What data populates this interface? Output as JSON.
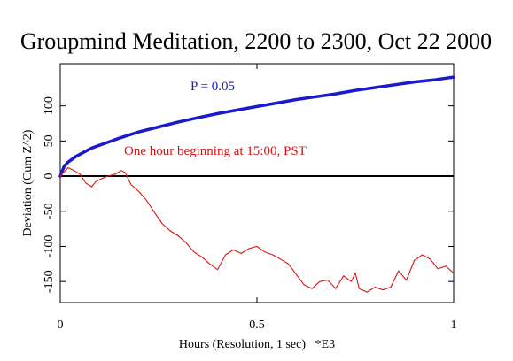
{
  "chart_data": {
    "type": "line",
    "title": "Groupmind Meditation, 2200 to 2300, Oct 22 2000",
    "xlabel": "Hours (Resolution, 1 sec)   *E3",
    "ylabel": "Deviation (Cum Z^2)",
    "xlim": [
      0,
      1
    ],
    "ylim": [
      -180,
      160
    ],
    "x_ticks": [
      0,
      0.5,
      1
    ],
    "x_tick_labels": [
      "0",
      "0.5",
      "1"
    ],
    "y_ticks": [
      -150,
      -100,
      -50,
      0,
      50,
      100
    ],
    "y_tick_labels": [
      "-150",
      "-100",
      "-50",
      "0",
      "50",
      "100"
    ],
    "grid": false,
    "colors": {
      "envelope": "#1a1acc",
      "data": "#dd1111",
      "axis": "#000000"
    },
    "annotations": [
      {
        "text": "P = 0.05",
        "color": "#1a1acc"
      },
      {
        "text": "One hour beginning at 15:00, PST",
        "color": "#dd1111"
      }
    ],
    "series": [
      {
        "role": "p05-envelope",
        "x": [
          0,
          0.01,
          0.02,
          0.04,
          0.06,
          0.08,
          0.1,
          0.15,
          0.2,
          0.25,
          0.3,
          0.35,
          0.4,
          0.45,
          0.5,
          0.55,
          0.6,
          0.65,
          0.7,
          0.75,
          0.8,
          0.85,
          0.9,
          0.95,
          1.0
        ],
        "values": [
          0,
          14,
          20,
          28,
          34,
          40,
          44,
          54,
          63,
          70,
          77,
          83,
          89,
          94,
          99,
          104,
          109,
          113,
          117,
          122,
          126,
          130,
          134,
          137,
          141
        ]
      },
      {
        "role": "cumulative-deviation",
        "x": [
          0,
          0.02,
          0.035,
          0.05,
          0.065,
          0.08,
          0.09,
          0.1,
          0.12,
          0.14,
          0.155,
          0.165,
          0.18,
          0.2,
          0.22,
          0.24,
          0.26,
          0.28,
          0.3,
          0.32,
          0.34,
          0.36,
          0.38,
          0.4,
          0.42,
          0.44,
          0.46,
          0.48,
          0.5,
          0.52,
          0.54,
          0.56,
          0.58,
          0.6,
          0.62,
          0.64,
          0.66,
          0.68,
          0.7,
          0.72,
          0.74,
          0.75,
          0.76,
          0.78,
          0.8,
          0.82,
          0.84,
          0.86,
          0.88,
          0.9,
          0.92,
          0.94,
          0.96,
          0.98,
          1.0
        ],
        "values": [
          0,
          12,
          8,
          3,
          -10,
          -15,
          -8,
          -5,
          0,
          3,
          8,
          5,
          -12,
          -22,
          -35,
          -52,
          -68,
          -78,
          -85,
          -95,
          -108,
          -115,
          -125,
          -133,
          -112,
          -105,
          -110,
          -103,
          -100,
          -108,
          -112,
          -118,
          -125,
          -140,
          -155,
          -160,
          -150,
          -148,
          -160,
          -142,
          -150,
          -138,
          -160,
          -165,
          -158,
          -162,
          -158,
          -135,
          -148,
          -120,
          -112,
          -118,
          -132,
          -128,
          -138
        ]
      }
    ]
  }
}
